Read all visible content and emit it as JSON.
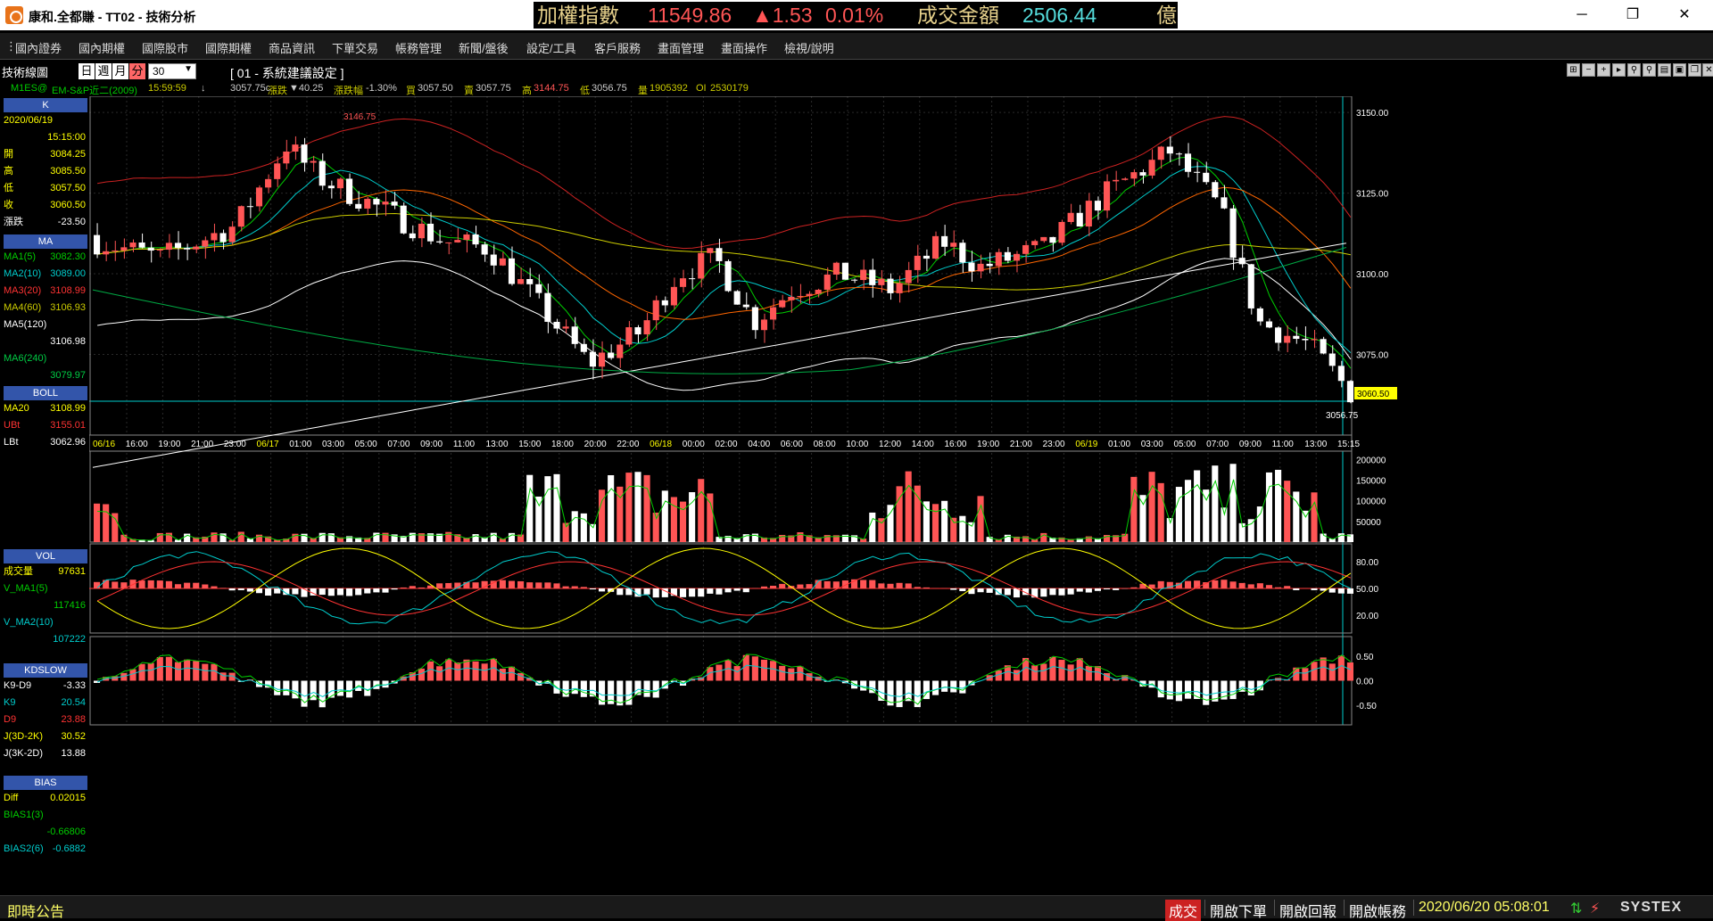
{
  "window": {
    "title": "康和.全都賺 - TT02 - 技術分析"
  },
  "ticker": {
    "index_label": "加權指數",
    "index_value": "11549.86",
    "change": "▲1.53",
    "pct": "0.01%",
    "turnover_label": "成交金額",
    "turnover_value": "2506.44",
    "unit": "億"
  },
  "menu": [
    "國內證券",
    "國內期權",
    "國際股市",
    "國際期權",
    "商品資訊",
    "下單交易",
    "帳務管理",
    "新聞/盤後",
    "設定/工具",
    "客戶服務",
    "畫面管理",
    "畫面操作",
    "檢視/說明"
  ],
  "toolbar": {
    "panel_title": "技術線圖",
    "period_day": "日",
    "period_week": "週",
    "period_month": "月",
    "period_minute": "分",
    "interval": "30",
    "settings_title": "[ 01 - 系統建議設定 ]"
  },
  "quote": {
    "symbol": "M1ES@",
    "name": "EM-S&P近二(2009)",
    "time": "15:59:59",
    "arrow": "↓",
    "last": "3057.75c",
    "change_label": "漲跌",
    "change": "▼40.25",
    "pct_label": "漲跌幅",
    "pct": "-1.30%",
    "bid_label": "買",
    "bid": "3057.50",
    "ask_label": "賣",
    "ask": "3057.75",
    "high_label": "高",
    "high": "3144.75",
    "low_label": "低",
    "low": "3056.75",
    "vol_label": "量",
    "vol": "1905392",
    "oi_label": "OI",
    "oi": "2530179"
  },
  "left_panels": {
    "k": {
      "header": "K",
      "date": "2020/06/19",
      "time": "15:15:00",
      "rows": [
        [
          "開",
          "3084.25"
        ],
        [
          "高",
          "3085.50"
        ],
        [
          "低",
          "3057.50"
        ],
        [
          "收",
          "3060.50"
        ],
        [
          "漲跌",
          "-23.50"
        ]
      ]
    },
    "ma": {
      "header": "MA",
      "rows": [
        [
          "MA1(5)",
          "3082.30"
        ],
        [
          "MA2(10)",
          "3089.00"
        ],
        [
          "MA3(20)",
          "3108.99"
        ],
        [
          "MA4(60)",
          "3106.93"
        ]
      ],
      "ma5_label": "MA5(120)",
      "ma5_value": "3106.98",
      "ma6_label": "MA6(240)",
      "ma6_value": "3079.97"
    },
    "boll": {
      "header": "BOLL",
      "rows": [
        [
          "MA20",
          "3108.99"
        ],
        [
          "UBt",
          "3155.01"
        ],
        [
          "LBt",
          "3062.96"
        ]
      ]
    },
    "vol": {
      "header": "VOL",
      "rows": [
        [
          "成交量",
          "97631"
        ]
      ],
      "ma1_label": "V_MA1(5)",
      "ma1_value": "117416",
      "ma2_label": "V_MA2(10)",
      "ma2_value": "107222"
    },
    "kd": {
      "header": "KDSLOW",
      "rows": [
        [
          "K9-D9",
          "-3.33"
        ],
        [
          "K9",
          "20.54"
        ],
        [
          "D9",
          "23.88"
        ],
        [
          "J(3D-2K)",
          "30.52"
        ],
        [
          "J(3K-2D)",
          "13.88"
        ]
      ]
    },
    "bias": {
      "header": "BIAS",
      "rows": [
        [
          "Diff",
          "0.02015"
        ],
        [
          "BIAS1(3)",
          "-0.66806"
        ],
        [
          "BIAS2(6)",
          "-0.6882"
        ]
      ]
    }
  },
  "price_axis": [
    "3150.00",
    "3125.00",
    "3100.00",
    "3075.00"
  ],
  "price_labels": {
    "high_mark": "3146.75",
    "current": "3060.50",
    "low_mark": "3056.75"
  },
  "time_axis": [
    "06/16",
    "16:00",
    "19:00",
    "21:00",
    "23:00",
    "06/17",
    "01:00",
    "03:00",
    "05:00",
    "07:00",
    "09:00",
    "11:00",
    "13:00",
    "15:00",
    "18:00",
    "20:00",
    "22:00",
    "06/18",
    "00:00",
    "02:00",
    "04:00",
    "06:00",
    "08:00",
    "10:00",
    "12:00",
    "14:00",
    "16:00",
    "19:00",
    "21:00",
    "23:00",
    "06/19",
    "01:00",
    "03:00",
    "05:00",
    "07:00",
    "09:00",
    "11:00",
    "13:00",
    "15:15"
  ],
  "vol_axis": [
    "200000",
    "150000",
    "100000",
    "50000"
  ],
  "kd_axis": [
    "80.00",
    "50.00",
    "20.00"
  ],
  "bias_axis": [
    "0.50",
    "0.00",
    "-0.50"
  ],
  "statusbar": {
    "news": "即時公告",
    "trade": "成交",
    "order": "開啟下單",
    "report": "開啟回報",
    "account": "開啟帳務",
    "datetime": "2020/06/20 05:08:01",
    "brand": "SYSTEX"
  },
  "colors": {
    "up": "#ff5555",
    "down": "#ffffff",
    "ma1": "#00cc00",
    "ma2": "#00cccc",
    "ma3": "#ff6600",
    "ma4": "#cccc00",
    "ma5": "#ffffff",
    "ma6": "#00aa44",
    "boll_up": "#cc2222"
  }
}
